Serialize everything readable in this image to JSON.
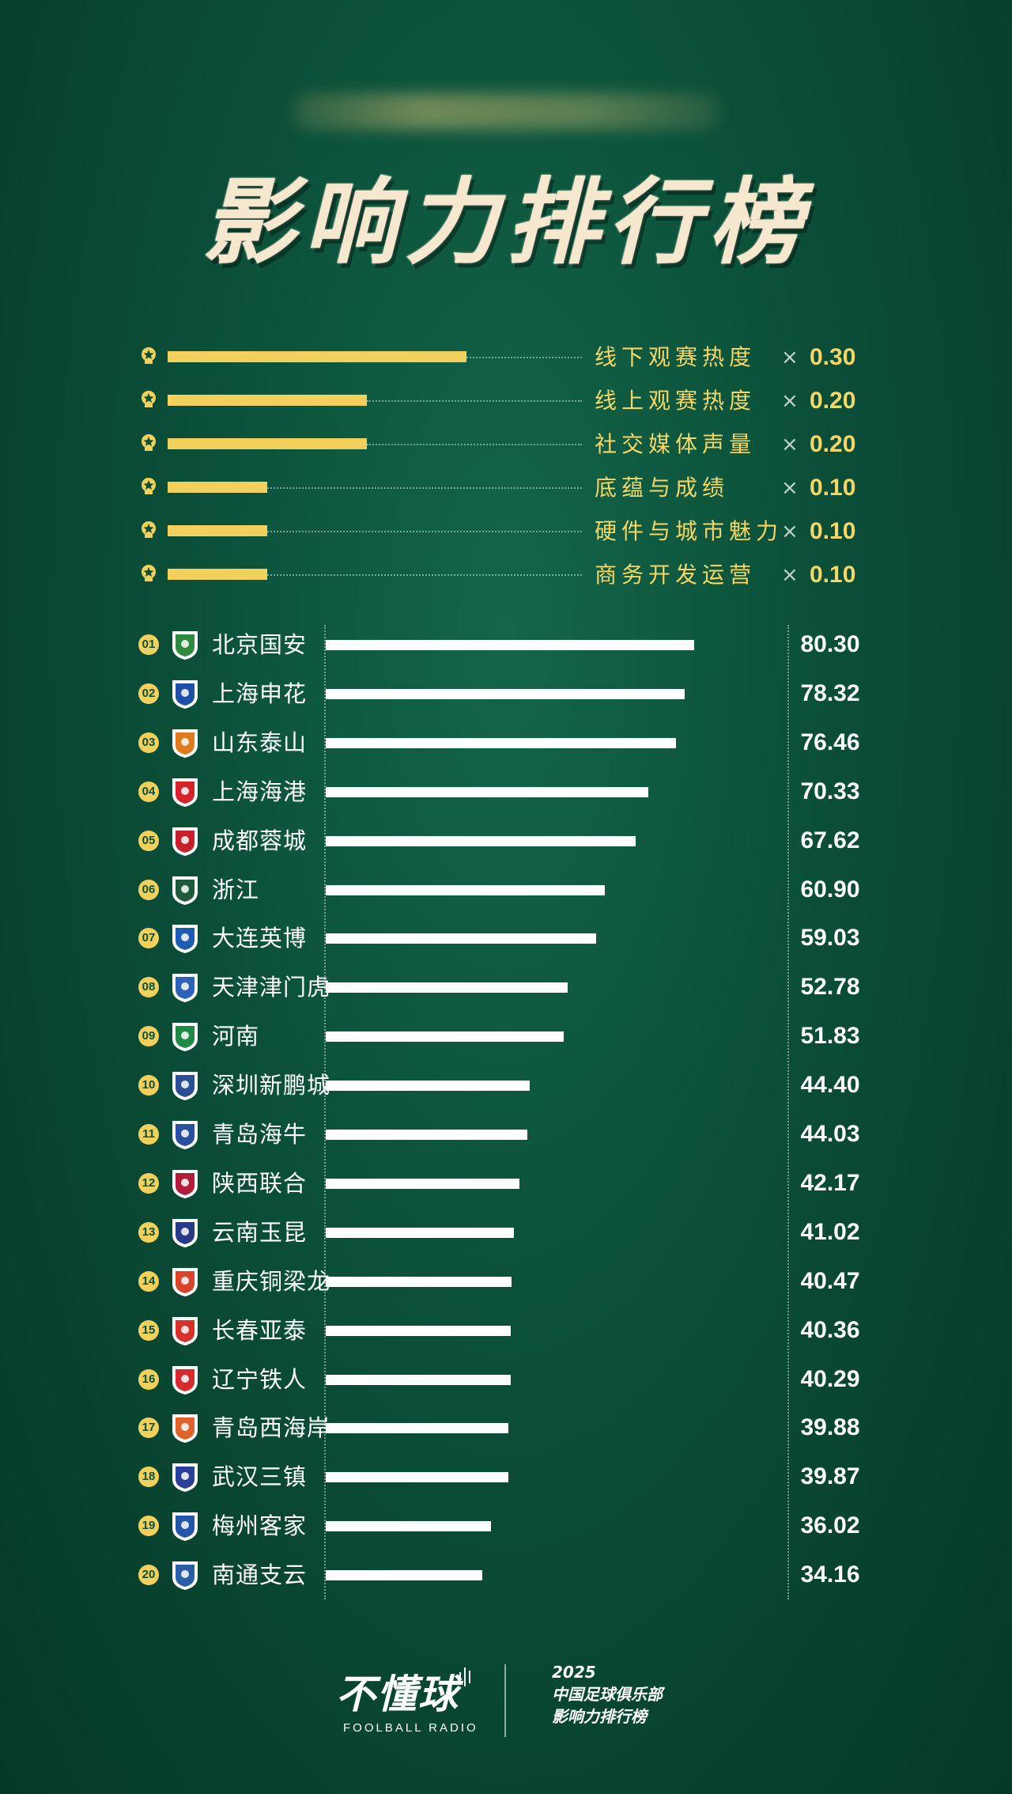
{
  "header": {
    "title": "影响力排行榜"
  },
  "weights": [
    {
      "label": "线下观赛热度",
      "times": "×",
      "value": "0.30",
      "weight": 0.3
    },
    {
      "label": "线上观赛热度",
      "times": "×",
      "value": "0.20",
      "weight": 0.2
    },
    {
      "label": "社交媒体声量",
      "times": "×",
      "value": "0.20",
      "weight": 0.2
    },
    {
      "label": "底蕴与成绩",
      "times": "×",
      "value": "0.10",
      "weight": 0.1
    },
    {
      "label": "硬件与城市魅力",
      "times": "×",
      "value": "0.10",
      "weight": 0.1
    },
    {
      "label": "商务开发运营",
      "times": "×",
      "value": "0.10",
      "weight": 0.1
    }
  ],
  "chart_data": {
    "type": "bar",
    "orientation": "horizontal",
    "title": "",
    "categories": [
      "北京国安",
      "上海申花",
      "山东泰山",
      "上海海港",
      "成都蓉城",
      "浙江",
      "大连英博",
      "天津津门虎",
      "河南",
      "深圳新鹏城",
      "青岛海牛",
      "陕西联合",
      "云南玉昆",
      "重庆铜梁龙",
      "长春亚泰",
      "辽宁铁人",
      "青岛西海岸",
      "武汉三镇",
      "梅州客家",
      "南通支云"
    ],
    "ranks": [
      "01",
      "02",
      "03",
      "04",
      "05",
      "06",
      "07",
      "08",
      "09",
      "10",
      "11",
      "12",
      "13",
      "14",
      "15",
      "16",
      "17",
      "18",
      "19",
      "20"
    ],
    "values": [
      80.3,
      78.32,
      76.46,
      70.33,
      67.62,
      60.9,
      59.03,
      52.78,
      51.83,
      44.4,
      44.03,
      42.17,
      41.02,
      40.47,
      40.36,
      40.29,
      39.88,
      39.87,
      36.02,
      34.16
    ],
    "value_labels": [
      "80.30",
      "78.32",
      "76.46",
      "70.33",
      "67.62",
      "60.90",
      "59.03",
      "52.78",
      "51.83",
      "44.40",
      "44.03",
      "42.17",
      "41.02",
      "40.47",
      "40.36",
      "40.29",
      "39.88",
      "39.87",
      "36.02",
      "34.16"
    ],
    "logo_colors": [
      "#2e8b3d",
      "#1f4fa8",
      "#e07b1c",
      "#d6242a",
      "#c8202a",
      "#1f5a3a",
      "#1e5bb5",
      "#2c63b8",
      "#1f8a45",
      "#2b4f96",
      "#2a4fa0",
      "#b01e3a",
      "#2a3a8a",
      "#d8452a",
      "#d8332a",
      "#d52b2b",
      "#e0642a",
      "#2b3f9a",
      "#2455a8",
      "#2a5fa6"
    ],
    "bar_color": "#ffffff",
    "xlim": [
      0,
      100
    ]
  },
  "footer": {
    "brand_name": "不懂球",
    "brand_sub": "FOOLBALL RADIO",
    "line1": "2025",
    "line2": "中国足球俱乐部",
    "line3": "影响力排行榜"
  },
  "colors": {
    "background": "#0b4f39",
    "accent_gold": "#f2d05c",
    "title_cream": "#f6e8cf"
  }
}
